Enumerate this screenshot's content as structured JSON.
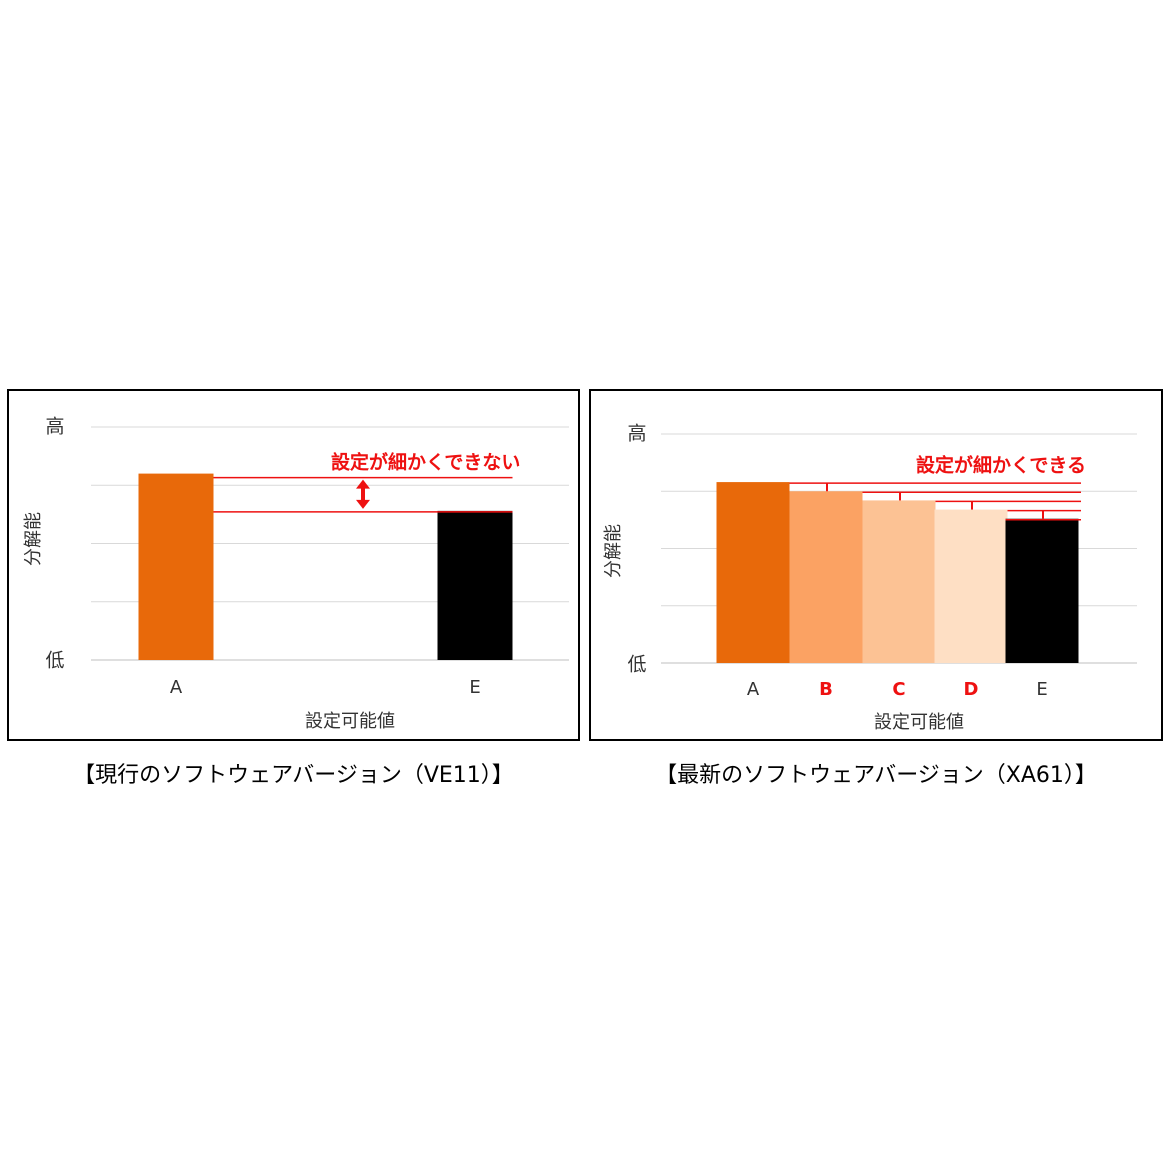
{
  "chart_data": [
    {
      "type": "bar",
      "caption": "【現行のソフトウェアバージョン（VE11）】",
      "categories": [
        "A",
        "E"
      ],
      "values": [
        80,
        64
      ],
      "bar_colors": [
        "#E8690A",
        "#000000"
      ],
      "category_label_colors": [
        "#333333",
        "#333333"
      ],
      "xlabel": "設定可能値",
      "ylabel": "分解能",
      "y_top_label": "高",
      "y_bottom_label": "低",
      "ylim": [
        0,
        100
      ],
      "grid": true,
      "annotation": "設定が細かくできない",
      "annotation_color": "#EE1111"
    },
    {
      "type": "bar",
      "caption": "【最新のソフトウェアバージョン（XA61）】",
      "categories": [
        "A",
        "B",
        "C",
        "D",
        "E"
      ],
      "values": [
        79,
        75,
        71,
        67,
        63
      ],
      "bar_colors": [
        "#E8690A",
        "#FBA263",
        "#FCC294",
        "#FEDFC4",
        "#000000"
      ],
      "category_label_colors": [
        "#333333",
        "#EE1111",
        "#EE1111",
        "#EE1111",
        "#333333"
      ],
      "xlabel": "設定可能値",
      "ylabel": "分解能",
      "y_top_label": "高",
      "y_bottom_label": "低",
      "ylim": [
        0,
        100
      ],
      "grid": true,
      "annotation": "設定が細かくできる",
      "annotation_color": "#EE1111"
    }
  ]
}
